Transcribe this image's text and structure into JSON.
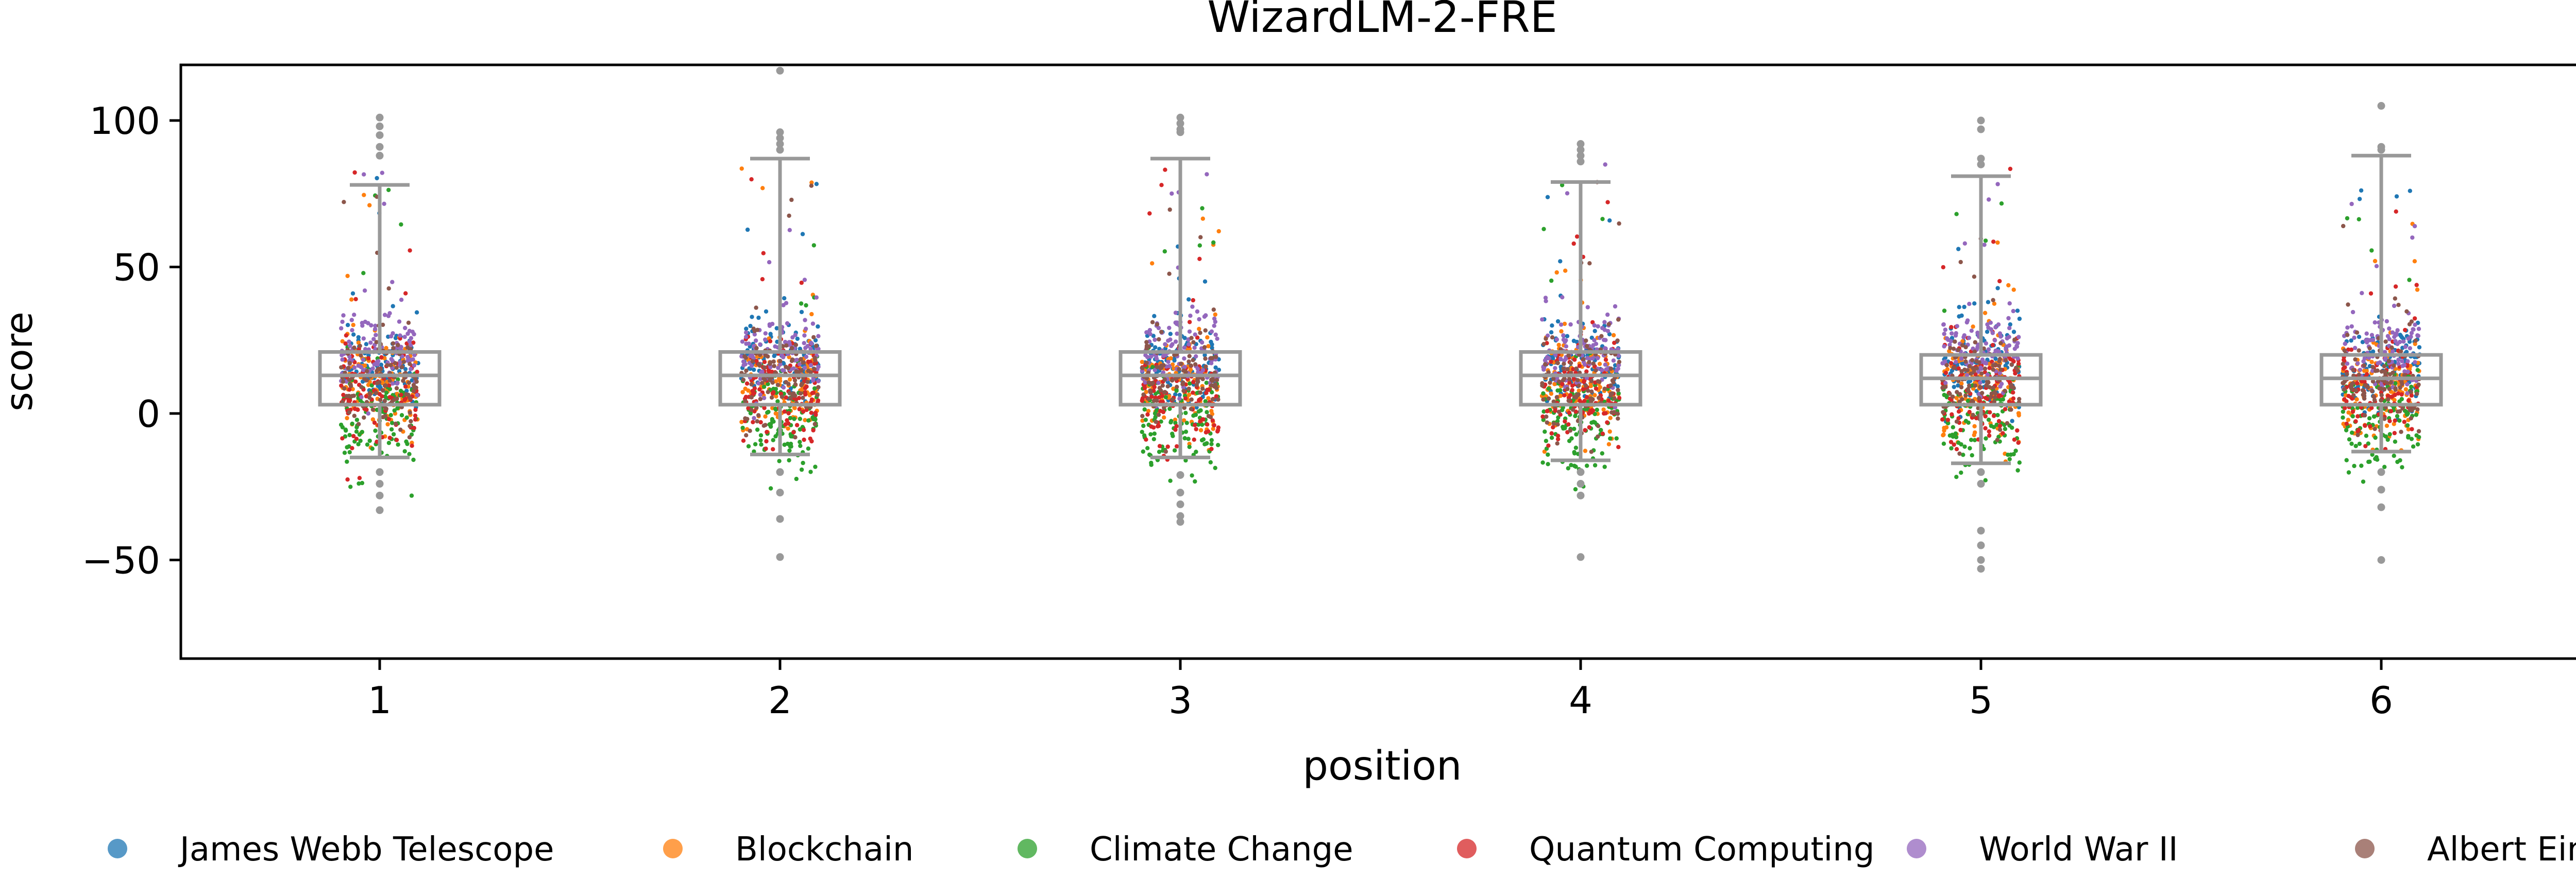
{
  "chart_data": {
    "type": "box+strip",
    "title": "WizardLM-2-FRE",
    "xlabel": "position",
    "ylabel": "score",
    "ylim": [
      -83,
      120
    ],
    "categories": [
      "1",
      "2",
      "3",
      "4",
      "5",
      "6"
    ],
    "yticks": [
      100,
      50,
      0,
      -50
    ],
    "ytick_labels": [
      "100",
      "50",
      "0",
      "−50"
    ],
    "grid": false,
    "legend_position": "bottom",
    "box_color": "#999999",
    "series": [
      {
        "name": "James Webb Telescope",
        "color": "#1f77b4",
        "center": 16,
        "spread": 7
      },
      {
        "name": "Blockchain",
        "color": "#ff7f0e",
        "center": 9,
        "spread": 9
      },
      {
        "name": "Climate Change",
        "color": "#2ca02c",
        "center": -2,
        "spread": 9
      },
      {
        "name": "Quantum Computing",
        "color": "#d62728",
        "center": 8,
        "spread": 9
      },
      {
        "name": "World War II",
        "color": "#9467bd",
        "center": 21,
        "spread": 7
      },
      {
        "name": "Albert Einstein",
        "color": "#8c564b",
        "center": 11,
        "spread": 8
      }
    ],
    "boxes": [
      {
        "position": "1",
        "whisker_low": -15,
        "q1": 3,
        "median": 13,
        "q3": 21,
        "whisker_high": 78,
        "outliers": [
          101,
          98,
          95,
          91,
          88,
          -20,
          -24,
          -28,
          -33
        ]
      },
      {
        "position": "2",
        "whisker_low": -14,
        "q1": 3,
        "median": 13,
        "q3": 21,
        "whisker_high": 87,
        "outliers": [
          117,
          96,
          94,
          92,
          90,
          -20,
          -27,
          -36,
          -49
        ]
      },
      {
        "position": "3",
        "whisker_low": -15,
        "q1": 3,
        "median": 13,
        "q3": 21,
        "whisker_high": 87,
        "outliers": [
          101,
          99,
          97,
          96,
          -21,
          -27,
          -31,
          -35,
          -37
        ]
      },
      {
        "position": "4",
        "whisker_low": -16,
        "q1": 3,
        "median": 13,
        "q3": 21,
        "whisker_high": 79,
        "outliers": [
          92,
          90,
          88,
          86,
          -20,
          -24,
          -28,
          -49
        ]
      },
      {
        "position": "5",
        "whisker_low": -17,
        "q1": 3,
        "median": 12,
        "q3": 20,
        "whisker_high": 81,
        "outliers": [
          100,
          97,
          87,
          85,
          -20,
          -24,
          -40,
          -45,
          -50,
          -53
        ]
      },
      {
        "position": "6",
        "whisker_low": -13,
        "q1": 3,
        "median": 12,
        "q3": 20,
        "whisker_high": 88,
        "outliers": [
          105,
          91,
          90,
          -20,
          -26,
          -32,
          -50
        ]
      }
    ]
  }
}
